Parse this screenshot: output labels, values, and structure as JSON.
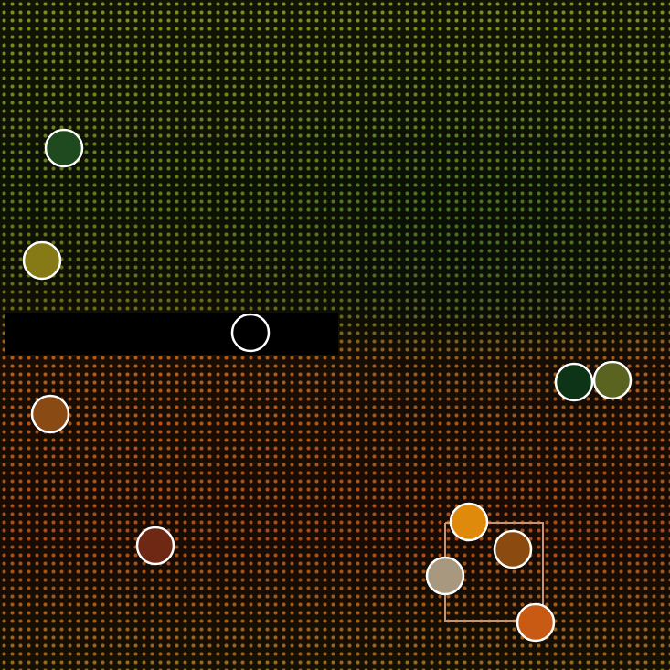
{
  "chart_data": {
    "type": "scatter",
    "xlim": [
      0,
      733
    ],
    "ylim": [
      733,
      0
    ],
    "xticks": [],
    "yticks": [],
    "tick_labels": false,
    "grid": false,
    "series": [
      {
        "type": "area",
        "color": "#000000",
        "x": [
          5,
          370,
          370,
          5,
          5
        ],
        "values": [
          342,
          342,
          388,
          388,
          342
        ]
      },
      {
        "type": "line",
        "color": "#c89478",
        "line_style": "solid",
        "x": [
          487,
          594,
          594,
          487,
          487
        ],
        "values": [
          572,
          572,
          679,
          679,
          572
        ]
      },
      {
        "type": "scatter",
        "marker": "circle",
        "colors": [
          "#1f4a1f",
          "#857a16",
          "#000000",
          "#8a4a14",
          "#0e3418",
          "#5a6320",
          "#6e2814",
          "#e08a0c",
          "#8a4a10",
          "#a89880",
          "#c85a14"
        ],
        "x": [
          70,
          46,
          274,
          55,
          628,
          670,
          170,
          513,
          561,
          487,
          586
        ],
        "values": [
          162,
          285,
          364,
          453,
          418,
          416,
          597,
          571,
          601,
          630,
          681
        ]
      }
    ]
  }
}
